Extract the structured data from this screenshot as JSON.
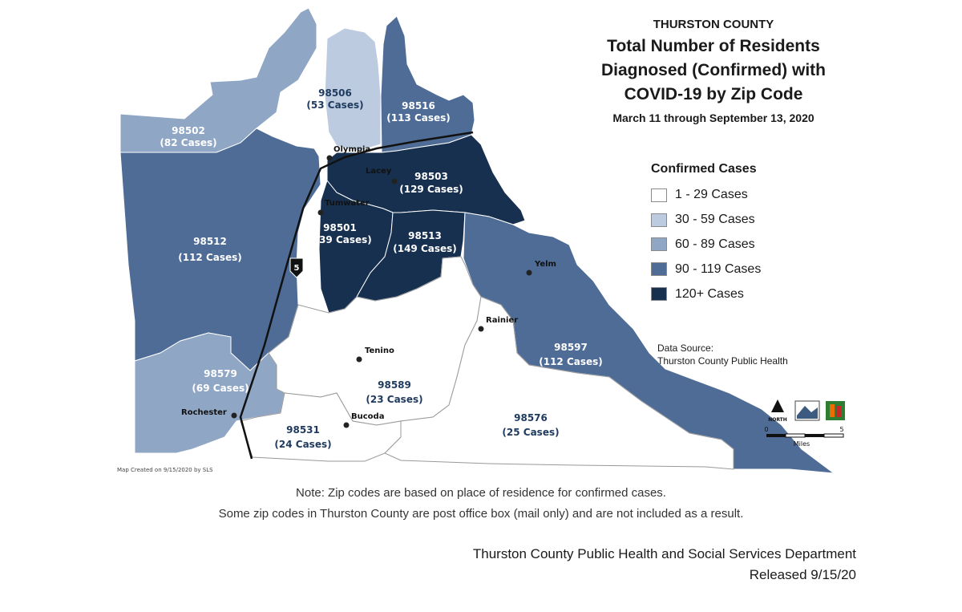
{
  "header": {
    "county": "THURSTON COUNTY",
    "title_lines": [
      "Total Number of Residents",
      "Diagnosed (Confirmed) with",
      "COVID-19 by Zip Code"
    ],
    "date_range": "March 11 through September 13, 2020"
  },
  "legend": {
    "title": "Confirmed Cases",
    "items": [
      {
        "label": "1 - 29 Cases",
        "color": "#ffffff"
      },
      {
        "label": "30 - 59 Cases",
        "color": "#bccbe0"
      },
      {
        "label": "60 - 89 Cases",
        "color": "#8fa6c4"
      },
      {
        "label": "90 - 119 Cases",
        "color": "#4e6c95"
      },
      {
        "label": "120+ Cases",
        "color": "#17304f"
      }
    ]
  },
  "zip_areas": [
    {
      "zip": "98502",
      "cases_label": "(82 Cases)",
      "cases": 82
    },
    {
      "zip": "98506",
      "cases_label": "(53 Cases)",
      "cases": 53
    },
    {
      "zip": "98516",
      "cases_label": "(113 Cases)",
      "cases": 113
    },
    {
      "zip": "98503",
      "cases_label": "(129 Cases)",
      "cases": 129
    },
    {
      "zip": "98512",
      "cases_label": "(112 Cases)",
      "cases": 112
    },
    {
      "zip": "98501",
      "cases_label": "(139 Cases)",
      "cases": 139
    },
    {
      "zip": "98513",
      "cases_label": "(149 Cases)",
      "cases": 149
    },
    {
      "zip": "98597",
      "cases_label": "(112 Cases)",
      "cases": 112
    },
    {
      "zip": "98579",
      "cases_label": "(69 Cases)",
      "cases": 69
    },
    {
      "zip": "98589",
      "cases_label": "(23 Cases)",
      "cases": 23
    },
    {
      "zip": "98531",
      "cases_label": "(24 Cases)",
      "cases": 24
    },
    {
      "zip": "98576",
      "cases_label": "(25 Cases)",
      "cases": 25
    }
  ],
  "cities": [
    "Olympia",
    "Lacey",
    "Tumwater",
    "Yelm",
    "Rainier",
    "Tenino",
    "Bucoda",
    "Rochester"
  ],
  "highway_shield": "5",
  "map_credit": "Map Created on 9/15/2020 by SLS",
  "scale": {
    "north_label": "NORTH",
    "min": "0",
    "max": "5",
    "unit": "Miles"
  },
  "data_source": [
    "Data Source:",
    "Thurston County Public Health"
  ],
  "notes": [
    "Note: Zip codes are based on place of residence for confirmed cases.",
    "Some zip codes in Thurston County are post office box (mail only) and are not included as a result."
  ],
  "footer": [
    "Thurston County Public Health and Social Services Department",
    "Released 9/15/20"
  ]
}
